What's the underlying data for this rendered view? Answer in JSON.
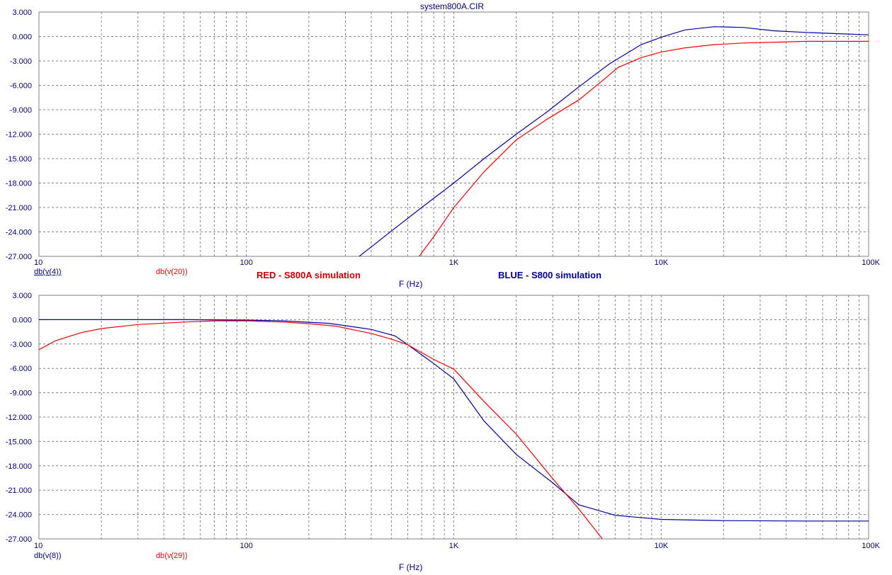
{
  "title": "system800A.CIR",
  "legend": {
    "red_note": "RED - S800A simulation",
    "blue_note": "BLUE - S800 simulation"
  },
  "colors": {
    "red": "#ff0000",
    "blue": "#0000aa",
    "axis_text": "#000080",
    "grid": "#808080"
  },
  "chart_data": [
    {
      "type": "line",
      "title": "system800A.CIR",
      "xlabel": "F (Hz)",
      "ylabel": "",
      "xscale": "log",
      "xlim": [
        10,
        100000
      ],
      "ylim": [
        -27,
        3
      ],
      "x_tick_labels": [
        "10",
        "100",
        "1K",
        "10K",
        "100K"
      ],
      "x_tick_values": [
        10,
        100,
        1000,
        10000,
        100000
      ],
      "y_tick_labels": [
        "3.000",
        "0.000",
        "-3.000",
        "-6.000",
        "-9.000",
        "-12.000",
        "-15.000",
        "-18.000",
        "-21.000",
        "-24.000",
        "-27.000"
      ],
      "y_tick_values": [
        3,
        0,
        -3,
        -6,
        -9,
        -12,
        -15,
        -18,
        -21,
        -24,
        -27
      ],
      "grid": true,
      "series_labels": [
        "db(v(4))",
        "db(v(20))"
      ],
      "series": [
        {
          "name": "db(v(4))",
          "color": "blue",
          "x": [
            350,
            500,
            700,
            1000,
            1400,
            2000,
            2800,
            4000,
            5600,
            8000,
            10000,
            13000,
            18000,
            25000,
            35000,
            50000,
            70000,
            100000
          ],
          "y": [
            -27,
            -23.9,
            -21,
            -18,
            -15,
            -12,
            -9.3,
            -6.2,
            -3.4,
            -1,
            -0.1,
            0.8,
            1.2,
            1.1,
            0.7,
            0.5,
            0.35,
            0.2
          ]
        },
        {
          "name": "db(v(20))",
          "color": "red",
          "x": [
            680,
            800,
            1000,
            1400,
            2000,
            2800,
            4000,
            5000,
            6200,
            8000,
            10000,
            13000,
            18000,
            25000,
            35000,
            50000,
            70000,
            100000
          ],
          "y": [
            -27,
            -24.6,
            -21,
            -16.6,
            -12.7,
            -10.2,
            -7.8,
            -5.8,
            -3.8,
            -2.6,
            -1.9,
            -1.4,
            -1.0,
            -0.8,
            -0.7,
            -0.6,
            -0.6,
            -0.6
          ]
        }
      ]
    },
    {
      "type": "line",
      "title": "",
      "xlabel": "F (Hz)",
      "ylabel": "",
      "xscale": "log",
      "xlim": [
        10,
        100000
      ],
      "ylim": [
        -27,
        3
      ],
      "x_tick_labels": [
        "10",
        "100",
        "1K",
        "10K",
        "100K"
      ],
      "x_tick_values": [
        10,
        100,
        1000,
        10000,
        100000
      ],
      "y_tick_labels": [
        "3.000",
        "0.000",
        "-3.000",
        "-6.000",
        "-9.000",
        "-12.000",
        "-15.000",
        "-18.000",
        "-21.000",
        "-24.000",
        "-27.000"
      ],
      "y_tick_values": [
        3,
        0,
        -3,
        -6,
        -9,
        -12,
        -15,
        -18,
        -21,
        -24,
        -27
      ],
      "grid": true,
      "series_labels": [
        "db(v(8))",
        "db(v(29))"
      ],
      "series": [
        {
          "name": "db(v(8))",
          "color": "blue",
          "x": [
            10,
            20,
            50,
            100,
            150,
            250,
            400,
            520,
            600,
            800,
            1000,
            1400,
            2000,
            3000,
            4000,
            6000,
            10000,
            20000,
            50000,
            100000
          ],
          "y": [
            0,
            0,
            0,
            -0.05,
            -0.15,
            -0.45,
            -1.2,
            -2.0,
            -3.1,
            -5.4,
            -7.3,
            -12.5,
            -16.6,
            -20.1,
            -22.8,
            -24.1,
            -24.6,
            -24.75,
            -24.8,
            -24.8
          ]
        },
        {
          "name": "db(v(29))",
          "color": "red",
          "x": [
            10,
            12,
            16,
            20,
            30,
            50,
            70,
            100,
            150,
            200,
            270,
            400,
            500,
            600,
            800,
            1000,
            1400,
            2000,
            3000,
            4000,
            5200
          ],
          "y": [
            -3.7,
            -2.6,
            -1.6,
            -1.1,
            -0.6,
            -0.3,
            -0.15,
            -0.15,
            -0.3,
            -0.5,
            -0.8,
            -1.7,
            -2.4,
            -3.1,
            -4.9,
            -6.1,
            -10.1,
            -14.1,
            -19.6,
            -23.3,
            -27
          ]
        }
      ]
    }
  ]
}
